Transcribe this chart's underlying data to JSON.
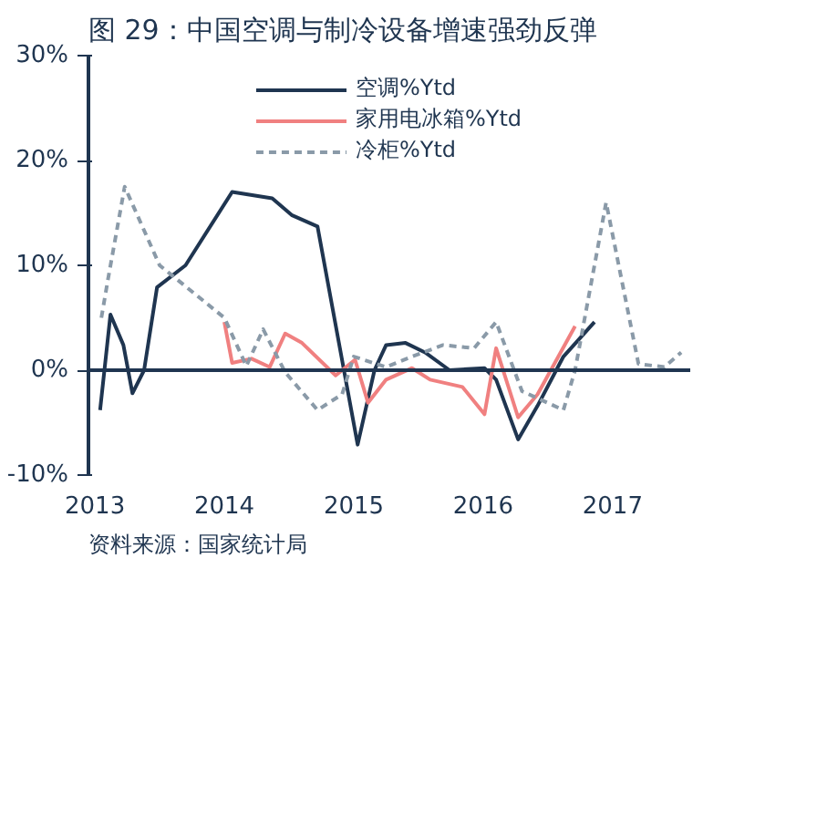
{
  "chart_data": {
    "type": "line",
    "title": "图 29：中国空调与制冷设备增速强劲反弹",
    "annotations": [
      "资料来源：国家统计局"
    ],
    "xlim": [
      2012.95,
      2017.6
    ],
    "xticks": [
      2013,
      2014,
      2015,
      2016,
      2017
    ],
    "ylim": [
      -10,
      30
    ],
    "yticks": [
      {
        "value": -10,
        "label": "-10%"
      },
      {
        "value": 0,
        "label": "0%"
      },
      {
        "value": 10,
        "label": "10%"
      },
      {
        "value": 20,
        "label": "20%"
      },
      {
        "value": 30,
        "label": "30%"
      }
    ],
    "grid": false,
    "legend": "top",
    "ref_lines": [
      {
        "axis": "y",
        "value": 0,
        "color": "#1f3550"
      }
    ],
    "series": [
      {
        "name": "空调%Ytd",
        "color": "#1f3550",
        "line_style": "solid",
        "x": [
          2013.04,
          2013.12,
          2013.22,
          2013.29,
          2013.38,
          2013.48,
          2013.7,
          2014.06,
          2014.37,
          2014.52,
          2014.72,
          2015.03,
          2015.16,
          2015.25,
          2015.4,
          2015.55,
          2015.74,
          2016.01,
          2016.1,
          2016.27,
          2016.42,
          2016.62,
          2016.86
        ],
        "values": [
          -3.8,
          5.3,
          2.4,
          -2.2,
          0,
          7.9,
          10,
          17,
          16.4,
          14.8,
          13.7,
          -7.1,
          0,
          2.4,
          2.6,
          1.7,
          0,
          0.2,
          -0.9,
          -6.6,
          -3.4,
          1.3,
          4.6
        ]
      },
      {
        "name": "家用电冰箱%Ytd",
        "color": "#f08080",
        "line_style": "solid",
        "x": [
          2014.0,
          2014.06,
          2014.21,
          2014.35,
          2014.47,
          2014.6,
          2014.86,
          2015.01,
          2015.11,
          2015.25,
          2015.45,
          2015.59,
          2015.84,
          2016.01,
          2016.1,
          2016.27,
          2016.42,
          2016.71
        ],
        "values": [
          4.6,
          0.7,
          1.1,
          0.3,
          3.5,
          2.6,
          -0.5,
          1,
          -3.1,
          -0.9,
          0.2,
          -0.9,
          -1.6,
          -4.2,
          2.1,
          -4.5,
          -2.3,
          4.2
        ]
      },
      {
        "name": "冷柜%Ytd",
        "color": "#8a9aa8",
        "line_style": "dashed",
        "x": [
          2013.05,
          2013.1,
          2013.23,
          2013.5,
          2014.0,
          2014.17,
          2014.3,
          2014.47,
          2014.72,
          2014.91,
          2015.0,
          2015.25,
          2015.45,
          2015.69,
          2015.93,
          2016.1,
          2016.3,
          2016.62,
          2016.71,
          2016.95,
          2017.2,
          2017.4,
          2017.53
        ],
        "values": [
          5,
          8.6,
          17.5,
          10,
          5,
          0.4,
          3.9,
          -0.2,
          -3.8,
          -2.3,
          1.3,
          0.3,
          1.3,
          2.4,
          2.1,
          4.6,
          -2,
          -3.8,
          0,
          16,
          0.6,
          0.3,
          1.7
        ]
      }
    ]
  }
}
